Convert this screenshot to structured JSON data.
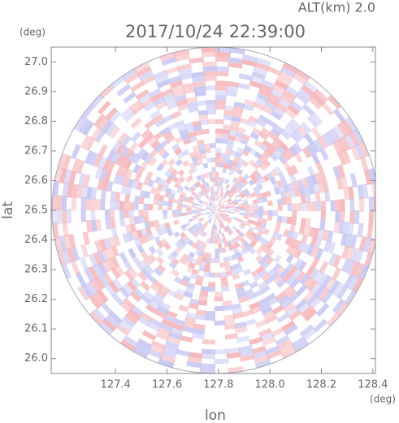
{
  "chart_data": {
    "type": "ppi",
    "title": "2017/10/24 22:39:00",
    "subtitle": "ALT(km) 2.0",
    "x_label": "lon",
    "y_label": "lat",
    "x_unit": "(deg)",
    "y_unit": "(deg)",
    "xlim": [
      127.15,
      128.41
    ],
    "ylim": [
      25.95,
      27.05
    ],
    "xticks": [
      127.4,
      127.6,
      127.8,
      {
        "value": 128,
        "label": "128.0"
      },
      128.2,
      128.4
    ],
    "yticks": [
      {
        "value": 26,
        "label": "26.0"
      },
      26.1,
      26.2,
      26.3,
      26.4,
      26.5,
      26.6,
      26.7,
      26.8,
      26.9,
      {
        "value": 27,
        "label": "27.0"
      }
    ],
    "colors": [
      "#f6b9bd",
      "#c9c9f3"
    ]
  }
}
